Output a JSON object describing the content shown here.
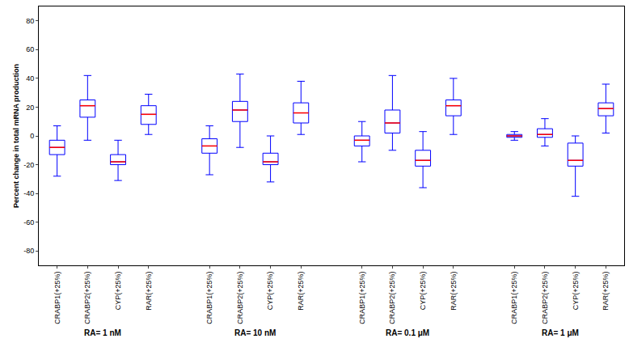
{
  "chart_data": {
    "type": "box",
    "y_label": "Percent change in total mRNA production",
    "categories": [
      "CRABP1(+25%)",
      "CRABP2(+25%)",
      "CYP(+25%)",
      "RAR(+25%)"
    ],
    "series": [
      {
        "name": "RA= 1 nM",
        "lower": [
          -28,
          -3,
          -31,
          1
        ],
        "q1": [
          -13,
          13,
          -20,
          8
        ],
        "median": [
          -8,
          21,
          -18,
          15
        ],
        "q3": [
          -3,
          25,
          -13,
          21
        ],
        "upper": [
          7,
          42,
          -3,
          29
        ]
      },
      {
        "name": "RA= 10 nM",
        "lower": [
          -27,
          -8,
          -32,
          1
        ],
        "q1": [
          -12,
          10,
          -20,
          9
        ],
        "median": [
          -7,
          18,
          -18,
          16
        ],
        "q3": [
          -2,
          24,
          -12,
          23
        ],
        "upper": [
          7,
          43,
          0,
          38
        ]
      },
      {
        "name": "RA= 0.1 μM",
        "lower": [
          -18,
          -10,
          -36,
          1
        ],
        "q1": [
          -7,
          2,
          -21,
          14
        ],
        "median": [
          -3,
          9,
          -17,
          21
        ],
        "q3": [
          0,
          18,
          -10,
          25
        ],
        "upper": [
          10,
          42,
          3,
          40
        ]
      },
      {
        "name": "RA= 1 μM",
        "lower": [
          -3,
          -7,
          -42,
          2
        ],
        "q1": [
          -1,
          -1,
          -21,
          14
        ],
        "median": [
          0,
          1,
          -17,
          19
        ],
        "q3": [
          1,
          5,
          -5,
          23
        ],
        "upper": [
          3,
          12,
          0,
          36
        ]
      }
    ],
    "color": "#0000ff",
    "ylim": [
      -90,
      90
    ],
    "yticks": [
      -80,
      -60,
      -40,
      -20,
      0,
      20,
      40,
      60,
      80
    ],
    "grid": false
  }
}
